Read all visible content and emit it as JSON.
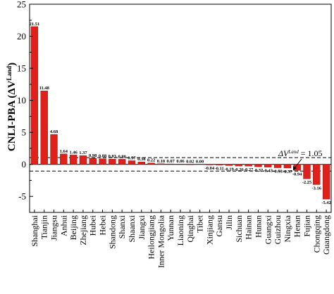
{
  "chart_data": {
    "type": "bar",
    "ylabel": "CNLI-PBA (ΔV",
    "ylabel_superscript": "Land",
    "ylabel_suffix": ")",
    "ylim": [
      -7.5,
      25
    ],
    "yticks": [
      -5,
      0,
      5,
      10,
      15,
      20,
      25
    ],
    "bar_color": "#e0201b",
    "categories": [
      "Shanghai",
      "Tianjin",
      "Jiangsu",
      "Anhui",
      "Beijing",
      "Zhejiang",
      "Hubei",
      "Hebei",
      "Shandong",
      "Shanxi",
      "Shaanxi",
      "Jiangxi",
      "Heilongjiang",
      "Inner Mongolia",
      "Yunnan",
      "Liaoning",
      "Qinghai",
      "Tibet",
      "Xinjiang",
      "Gansu",
      "Jilin",
      "Sichuan",
      "Hainan",
      "Hunan",
      "Guangxi",
      "Guizhou",
      "Ningxia",
      "Henan",
      "Fujian",
      "Chongqing",
      "Guangdong"
    ],
    "values": [
      21.51,
      11.48,
      4.68,
      1.64,
      1.46,
      1.37,
      0.98,
      0.88,
      0.83,
      0.8,
      0.57,
      0.38,
      0.22,
      0.1,
      0.07,
      0.06,
      0.02,
      0.0,
      -0.04,
      -0.11,
      -0.19,
      -0.26,
      -0.27,
      -0.37,
      -0.43,
      -0.53,
      -0.57,
      -0.94,
      -2.25,
      -3.16,
      -5.42
    ],
    "data_labels": [
      "21.51",
      "11.48",
      "4.68",
      "1.64",
      "1.46",
      "1.37",
      "0.98",
      "0.88",
      "0.83",
      "0.80",
      "0.57",
      "0.38",
      "0.22",
      "0.10",
      "0.07",
      "0.06",
      "0.02",
      "0.00",
      "-0.04",
      "-0.11",
      "-0.19",
      "-0.26",
      "-0.27",
      "-0.37",
      "-0.43",
      "-0.53",
      "-0.57",
      "-0.94",
      "-2.25",
      "-3.16",
      "-5.42"
    ],
    "reference_lines": [
      1.05,
      -1.05
    ],
    "annotation": {
      "prefix": "ΔV",
      "superscript": "Land",
      "suffix": " = 1.05"
    }
  }
}
